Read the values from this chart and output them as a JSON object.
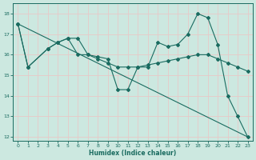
{
  "xlabel": "Humidex (Indice chaleur)",
  "background_color": "#cce8e0",
  "grid_color": "#b8d8d0",
  "line_color": "#1a6b60",
  "xlim": [
    -0.5,
    23.5
  ],
  "ylim": [
    11.8,
    18.5
  ],
  "yticks": [
    12,
    13,
    14,
    15,
    16,
    17,
    18
  ],
  "xticks": [
    0,
    1,
    2,
    3,
    4,
    5,
    6,
    7,
    8,
    9,
    10,
    11,
    12,
    13,
    14,
    15,
    16,
    17,
    18,
    19,
    20,
    21,
    22,
    23
  ],
  "series1_x": [
    0,
    1,
    3,
    4,
    5,
    6,
    7,
    8,
    9,
    10,
    11,
    12,
    13,
    14,
    15,
    16,
    17,
    18,
    19,
    20,
    21,
    22,
    23
  ],
  "series1_y": [
    17.5,
    15.4,
    16.3,
    16.6,
    16.8,
    16.8,
    16.0,
    15.9,
    15.8,
    14.3,
    14.3,
    15.4,
    15.4,
    16.6,
    16.4,
    16.5,
    17.0,
    18.0,
    17.8,
    16.5,
    14.0,
    13.0,
    12.0
  ],
  "series2_x": [
    0,
    1,
    3,
    4,
    5,
    6,
    7,
    8,
    9,
    10,
    11,
    12,
    13,
    14,
    15,
    16,
    17,
    18,
    19,
    20,
    21,
    22,
    23
  ],
  "series2_y": [
    17.5,
    15.4,
    16.3,
    16.6,
    16.8,
    16.0,
    16.0,
    15.8,
    15.6,
    15.4,
    15.4,
    15.4,
    15.5,
    15.6,
    15.7,
    15.8,
    15.9,
    16.0,
    16.0,
    15.8,
    15.6,
    15.4,
    15.2
  ],
  "series3_x": [
    0,
    23
  ],
  "series3_y": [
    17.5,
    12.0
  ]
}
